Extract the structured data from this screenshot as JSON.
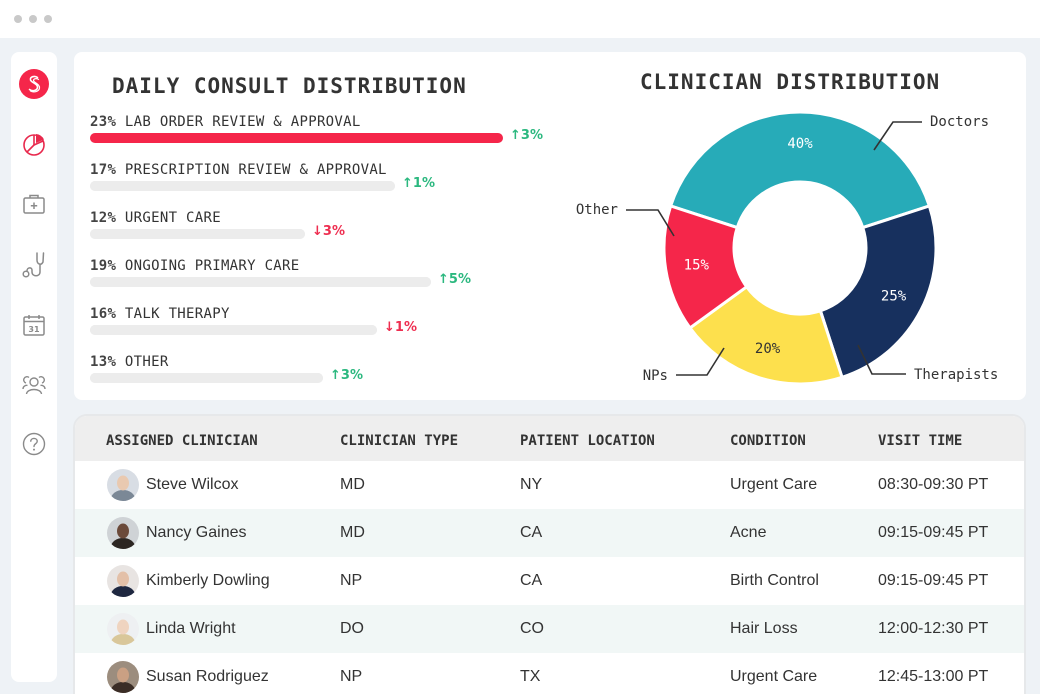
{
  "window": {
    "controls": [
      "close",
      "minimize",
      "maximize"
    ]
  },
  "sidebar": {
    "logo": {
      "icon": "brand-s-logo-icon",
      "color": "#f5264a"
    },
    "items": [
      {
        "name": "analytics",
        "icon": "pie-chart-icon",
        "active": true
      },
      {
        "name": "medical-kit",
        "icon": "medical-kit-icon",
        "active": false
      },
      {
        "name": "clinicians",
        "icon": "stethoscope-icon",
        "active": false
      },
      {
        "name": "calendar",
        "icon": "calendar-icon",
        "active": false,
        "calendar_day": "31"
      },
      {
        "name": "patients",
        "icon": "users-icon",
        "active": false
      },
      {
        "name": "help",
        "icon": "help-icon",
        "active": false
      }
    ]
  },
  "consult": {
    "title": "DAILY CONSULT DISTRIBUTION",
    "items": [
      {
        "percent_label": "23%",
        "value": 23,
        "label": "LAB ORDER REVIEW & APPROVAL",
        "delta": "3%",
        "direction": "up",
        "highlight": true
      },
      {
        "percent_label": "17%",
        "value": 17,
        "label": "PRESCRIPTION REVIEW & APPROVAL",
        "delta": "1%",
        "direction": "up",
        "highlight": false
      },
      {
        "percent_label": "12%",
        "value": 12,
        "label": "URGENT CARE",
        "delta": "3%",
        "direction": "down",
        "highlight": false
      },
      {
        "percent_label": "19%",
        "value": 19,
        "label": "ONGOING PRIMARY CARE",
        "delta": "5%",
        "direction": "up",
        "highlight": false
      },
      {
        "percent_label": "16%",
        "value": 16,
        "label": "TALK THERAPY",
        "delta": "1%",
        "direction": "down",
        "highlight": false
      },
      {
        "percent_label": "13%",
        "value": 13,
        "label": "OTHER",
        "delta": "3%",
        "direction": "up",
        "highlight": false
      }
    ],
    "colors": {
      "highlight": "#f5264a",
      "track": "#ececec",
      "up": "#2bb87f",
      "down": "#ee2e50"
    },
    "arrows": {
      "up": "↑",
      "down": "↓"
    }
  },
  "chart_data": {
    "type": "pie",
    "title": "CLINICIAN DISTRIBUTION",
    "donut": true,
    "categories": [
      "Doctors",
      "Therapists",
      "NPs",
      "Other"
    ],
    "values": [
      40,
      25,
      20,
      15
    ],
    "value_labels": [
      "40%",
      "25%",
      "20%",
      "15%"
    ],
    "colors": [
      "#27abb8",
      "#17305e",
      "#fde04d",
      "#f5264a"
    ],
    "label_text_colors": [
      "#ffffff",
      "#ffffff",
      "#333333",
      "#ffffff"
    ]
  },
  "table": {
    "headers": [
      "ASSIGNED CLINICIAN",
      "CLINICIAN TYPE",
      "PATIENT LOCATION",
      "CONDITION",
      "VISIT TIME"
    ],
    "rows": [
      {
        "clinician": "Steve Wilcox",
        "type": "MD",
        "location": "NY",
        "condition": "Urgent Care",
        "visit_time": "08:30-09:30 PT"
      },
      {
        "clinician": "Nancy Gaines",
        "type": "MD",
        "location": "CA",
        "condition": "Acne",
        "visit_time": "09:15-09:45 PT"
      },
      {
        "clinician": "Kimberly Dowling",
        "type": "NP",
        "location": "CA",
        "condition": "Birth Control",
        "visit_time": "09:15-09:45 PT"
      },
      {
        "clinician": "Linda Wright",
        "type": "DO",
        "location": "CO",
        "condition": "Hair Loss",
        "visit_time": "12:00-12:30 PT"
      },
      {
        "clinician": "Susan Rodriguez",
        "type": "NP",
        "location": "TX",
        "condition": "Urgent Care",
        "visit_time": "12:45-13:00 PT"
      }
    ]
  }
}
